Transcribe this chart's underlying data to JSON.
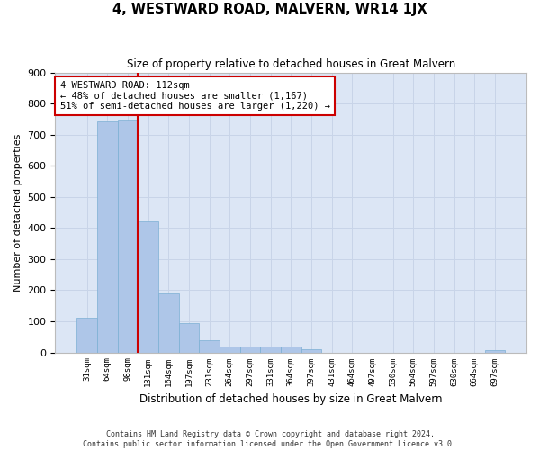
{
  "title": "4, WESTWARD ROAD, MALVERN, WR14 1JX",
  "subtitle": "Size of property relative to detached houses in Great Malvern",
  "xlabel": "Distribution of detached houses by size in Great Malvern",
  "ylabel": "Number of detached properties",
  "footer_line1": "Contains HM Land Registry data © Crown copyright and database right 2024.",
  "footer_line2": "Contains public sector information licensed under the Open Government Licence v3.0.",
  "bins": [
    "31sqm",
    "64sqm",
    "98sqm",
    "131sqm",
    "164sqm",
    "197sqm",
    "231sqm",
    "264sqm",
    "297sqm",
    "331sqm",
    "364sqm",
    "397sqm",
    "431sqm",
    "464sqm",
    "497sqm",
    "530sqm",
    "564sqm",
    "597sqm",
    "630sqm",
    "664sqm",
    "697sqm"
  ],
  "values": [
    113,
    742,
    748,
    422,
    191,
    95,
    40,
    20,
    20,
    18,
    18,
    10,
    0,
    0,
    0,
    0,
    0,
    0,
    0,
    0,
    8
  ],
  "bar_color": "#aec6e8",
  "bar_edge_color": "#7bafd4",
  "grid_color": "#c8d4e8",
  "background_color": "#dce6f5",
  "red_line_color": "#cc0000",
  "annotation_text_line1": "4 WESTWARD ROAD: 112sqm",
  "annotation_text_line2": "← 48% of detached houses are smaller (1,167)",
  "annotation_text_line3": "51% of semi-detached houses are larger (1,220) →",
  "annotation_box_color": "#cc0000",
  "ylim": [
    0,
    900
  ],
  "yticks": [
    0,
    100,
    200,
    300,
    400,
    500,
    600,
    700,
    800,
    900
  ],
  "red_line_x": 2.5
}
